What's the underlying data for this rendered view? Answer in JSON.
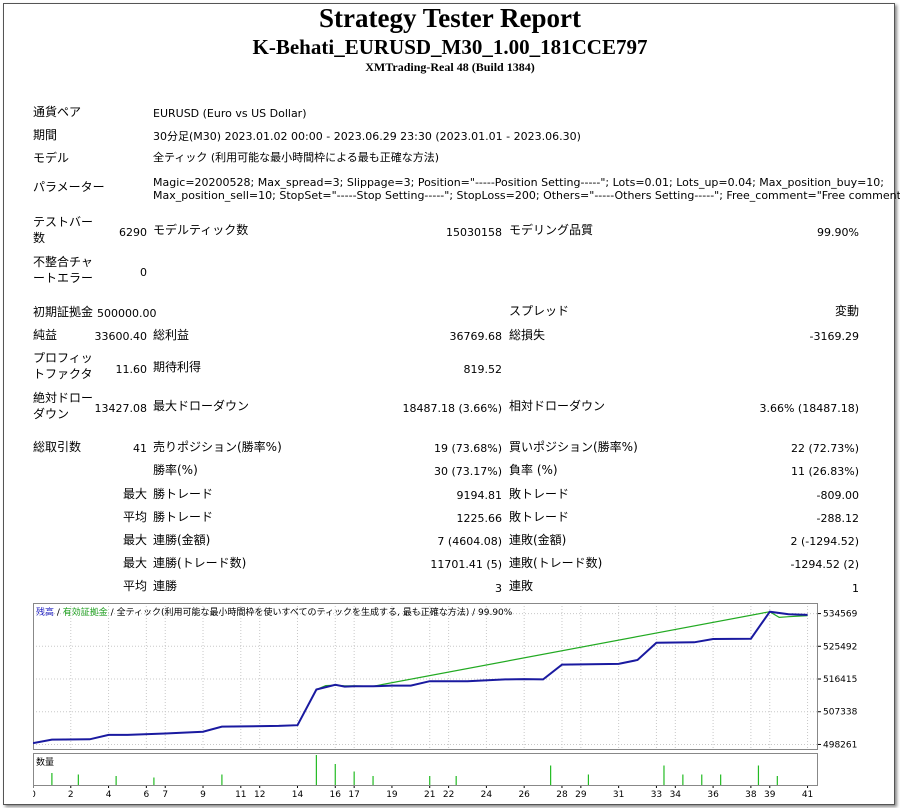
{
  "header": {
    "title": "Strategy Tester Report",
    "subtitle": "K-Behati_EURUSD_M30_1.00_181CCE797",
    "server": "XMTrading-Real 48 (Build 1384)"
  },
  "info": {
    "symbol_label": "通貨ペア",
    "symbol_value": "EURUSD (Euro vs US Dollar)",
    "period_label": "期間",
    "period_value": "30分足(M30) 2023.01.02 00:00 - 2023.06.29 23:30 (2023.01.01 - 2023.06.30)",
    "model_label": "モデル",
    "model_value": "全ティック (利用可能な最小時間枠による最も正確な方法)",
    "params_label": "パラメーター",
    "params_line1": "Magic=20200528; Max_spread=3; Slippage=3; Position=\"-----Position Setting-----\"; Lots=0.01; Lots_up=0.04; Max_position_buy=10;",
    "params_line2": "Max_position_sell=10; StopSet=\"-----Stop Setting-----\"; StopLoss=200; Others=\"-----Others Setting-----\"; Free_comment=\"Free comment\";"
  },
  "stats": {
    "bars_label": "テストバー数",
    "bars_value": "6290",
    "ticks_label": "モデルティック数",
    "ticks_value": "15030158",
    "quality_label": "モデリング品質",
    "quality_value": "99.90%",
    "mismatch_label": "不整合チャートエラー",
    "mismatch_value": "0",
    "deposit_label": "初期証拠金",
    "deposit_value": "500000.00",
    "spread_label": "スプレッド",
    "spread_value": "変動",
    "net_label": "純益",
    "net_value": "33600.40",
    "gross_profit_label": "総利益",
    "gross_profit_value": "36769.68",
    "gross_loss_label": "総損失",
    "gross_loss_value": "-3169.29",
    "pf_label": "プロフィットファクタ",
    "pf_value": "11.60",
    "payoff_label": "期待利得",
    "payoff_value": "819.52",
    "abs_dd_label": "絶対ドローダウン",
    "abs_dd_value": "13427.08",
    "max_dd_label": "最大ドローダウン",
    "max_dd_value": "18487.18 (3.66%)",
    "rel_dd_label": "相対ドローダウン",
    "rel_dd_value": "3.66% (18487.18)",
    "total_trades_label": "総取引数",
    "total_trades_value": "41",
    "short_label": "売りポジション(勝率%)",
    "short_value": "19 (73.68%)",
    "long_label": "買いポジション(勝率%)",
    "long_value": "22 (72.73%)",
    "win_label": "勝率(%)",
    "win_value": "30 (73.17%)",
    "loss_label": "負率 (%)",
    "loss_value": "11 (26.83%)",
    "largest_label": "最大",
    "largest_win_label": "勝トレード",
    "largest_win_value": "9194.81",
    "largest_loss_label": "敗トレード",
    "largest_loss_value": "-809.00",
    "average_label": "平均",
    "avg_win_label": "勝トレード",
    "avg_win_value": "1225.66",
    "avg_loss_label": "敗トレード",
    "avg_loss_value": "-288.12",
    "max1_label": "最大",
    "max_consec_wins_label": "連勝(金額)",
    "max_consec_wins_value": "7 (4604.08)",
    "max_consec_losses_label": "連敗(金額)",
    "max_consec_losses_value": "2 (-1294.52)",
    "max2_label": "最大",
    "max_consec_profit_label": "連勝(トレード数)",
    "max_consec_profit_value": "11701.41 (5)",
    "max_consec_loss_label": "連敗(トレード数)",
    "max_consec_loss_value": "-1294.52 (2)",
    "avg2_label": "平均",
    "avg_consec_wins_label": "連勝",
    "avg_consec_wins_value": "3",
    "avg_consec_losses_label": "連敗",
    "avg_consec_losses_value": "1"
  },
  "chart_caption": {
    "balance": "残高",
    "sep1": " / ",
    "equity": "有効証拠金",
    "sep2": " / ",
    "model": "全ティック(利用可能な最小時間枠を使いすべてのティックを生成する, 最も正確な方法)",
    "sep3": " / ",
    "quality": "99.90%",
    "volume": "数量"
  },
  "chart_data": {
    "type": "line",
    "title": "",
    "colors": {
      "balance": "#1a1aa0",
      "equity": "#22aa22",
      "volume": "#22bb22",
      "grid": "#c8c8c8"
    },
    "y_ticks": [
      498261,
      507338,
      516415,
      525492,
      534569
    ],
    "ylim": [
      497000,
      537500
    ],
    "x_ticks": [
      0,
      2,
      4,
      6,
      7,
      9,
      11,
      12,
      14,
      16,
      17,
      19,
      21,
      22,
      24,
      26,
      28,
      29,
      31,
      33,
      34,
      36,
      38,
      39,
      41
    ],
    "xlim": [
      0,
      41.5
    ],
    "series": [
      {
        "name": "残高",
        "x": [
          0,
          1,
          3,
          4,
          5,
          7,
          9,
          10,
          13,
          14,
          15,
          16,
          16.5,
          17,
          18,
          19,
          20,
          21,
          23,
          25,
          26,
          27,
          28,
          31,
          32,
          33,
          35,
          36,
          38,
          39,
          40,
          41
        ],
        "values": [
          498600,
          499600,
          499700,
          500900,
          500900,
          501300,
          501800,
          503200,
          503400,
          503600,
          513500,
          514800,
          514300,
          514400,
          514400,
          514600,
          514600,
          515800,
          515800,
          516300,
          516400,
          516300,
          520400,
          520600,
          521700,
          526500,
          526600,
          527500,
          527600,
          535100,
          534400,
          534200
        ]
      },
      {
        "name": "有効証拠金",
        "x": [
          15,
          15.5,
          16,
          16.5,
          17,
          18,
          39,
          39.5,
          40,
          41
        ],
        "values": [
          513500,
          514600,
          514700,
          514500,
          514500,
          514400,
          535100,
          533500,
          533700,
          534000
        ]
      }
    ],
    "volume_bars": [
      {
        "x": 1,
        "h": 0.4
      },
      {
        "x": 2.4,
        "h": 0.35
      },
      {
        "x": 4.4,
        "h": 0.3
      },
      {
        "x": 6.4,
        "h": 0.25
      },
      {
        "x": 10,
        "h": 0.35
      },
      {
        "x": 15,
        "h": 1.0
      },
      {
        "x": 16,
        "h": 0.7
      },
      {
        "x": 17,
        "h": 0.45
      },
      {
        "x": 18,
        "h": 0.3
      },
      {
        "x": 21,
        "h": 0.3
      },
      {
        "x": 22.4,
        "h": 0.3
      },
      {
        "x": 27.4,
        "h": 0.65
      },
      {
        "x": 29.4,
        "h": 0.35
      },
      {
        "x": 33.4,
        "h": 0.65
      },
      {
        "x": 34.4,
        "h": 0.35
      },
      {
        "x": 35.4,
        "h": 0.35
      },
      {
        "x": 36.4,
        "h": 0.35
      },
      {
        "x": 38.4,
        "h": 0.65
      },
      {
        "x": 39.4,
        "h": 0.3
      }
    ]
  }
}
